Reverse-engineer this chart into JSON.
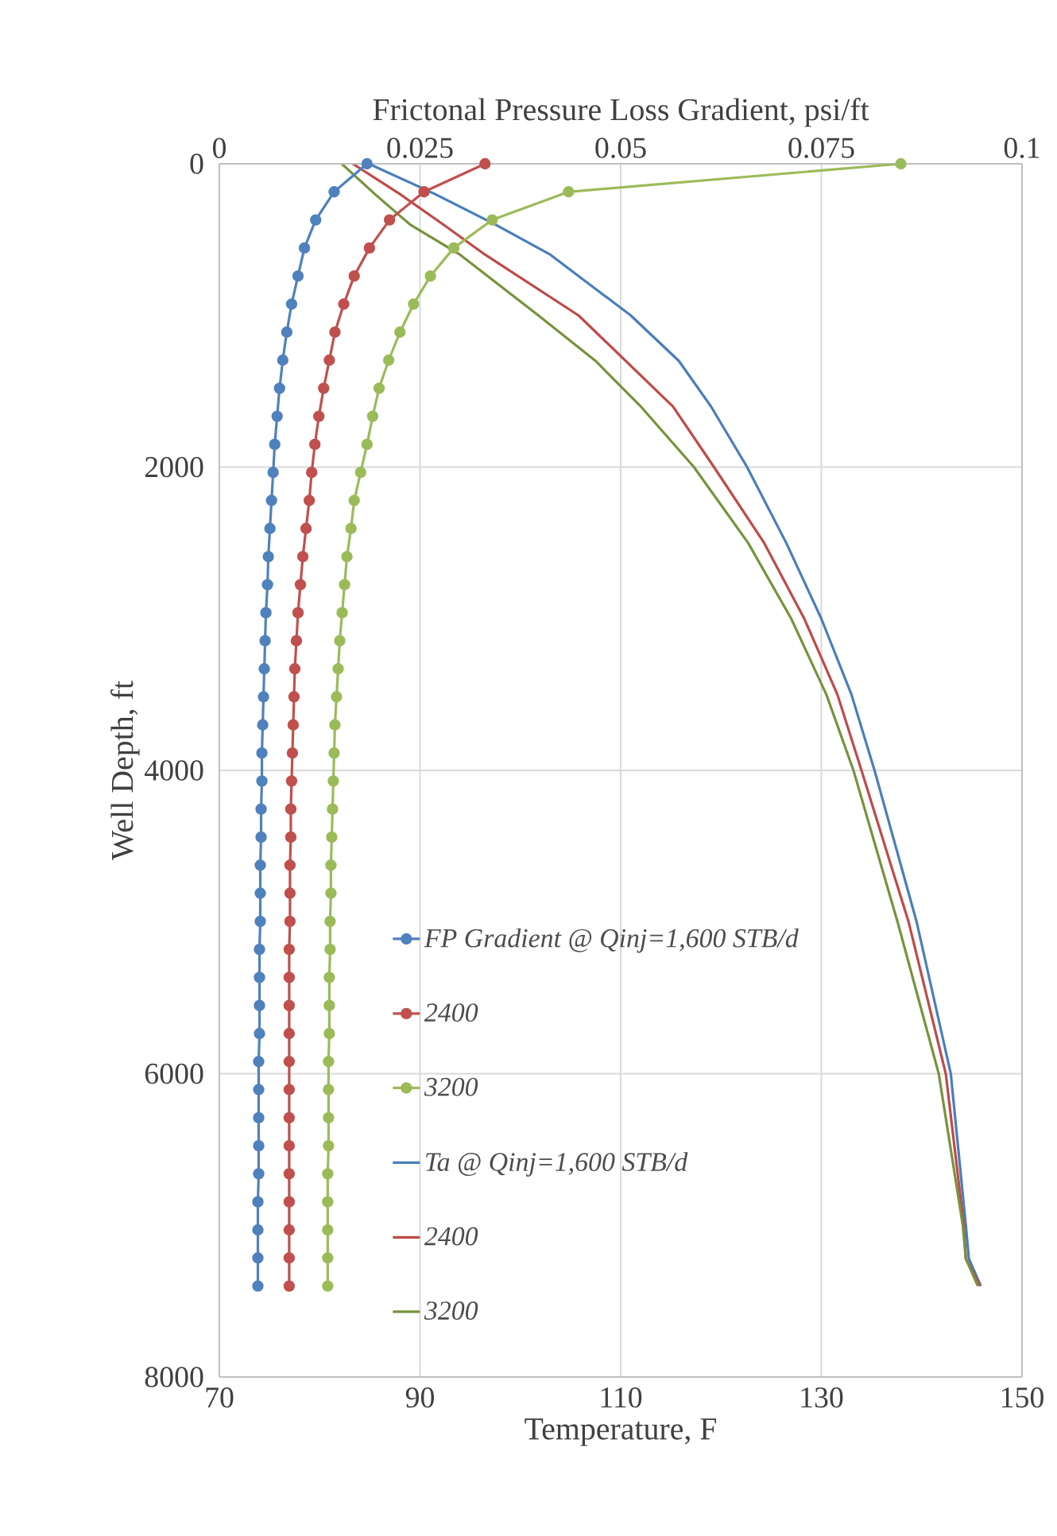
{
  "chart_data": {
    "type": "line",
    "xlabel": "Temperature, F",
    "ylabel": "Well Depth, ft",
    "x2label": "Frictonal Pressure Loss Gradient, psi/ft",
    "xlim": [
      70,
      150
    ],
    "xticks": [
      70,
      90,
      110,
      130,
      150
    ],
    "x2lim": [
      0,
      0.1
    ],
    "x2ticks": [
      0,
      0.025,
      0.05,
      0.075,
      0.1
    ],
    "ylim": [
      8000,
      0
    ],
    "yticks": [
      0,
      2000,
      4000,
      6000,
      8000
    ],
    "grid": true,
    "legend": "bottom",
    "series": [
      {
        "name": "FP Gradient @ Qinj=1,600 STB/d",
        "color": "#4f81bd",
        "axis": "x2",
        "marker": "circle",
        "x": [
          0.0184,
          0.0143,
          0.012,
          0.0106,
          0.0098,
          0.009,
          0.0084,
          0.0079,
          0.0075,
          0.0072,
          0.0069,
          0.0067,
          0.0065,
          0.0063,
          0.0061,
          0.006,
          0.0058,
          0.0057,
          0.0056,
          0.0055,
          0.0054,
          0.0053,
          0.0053,
          0.0052,
          0.0052,
          0.0051,
          0.0051,
          0.0051,
          0.005,
          0.005,
          0.005,
          0.005,
          0.0049,
          0.0049,
          0.0049,
          0.0049,
          0.0049,
          0.0048,
          0.0048,
          0.0048,
          0.0048
        ],
        "values": [
          0,
          185,
          370,
          555,
          740,
          925,
          1110,
          1295,
          1480,
          1665,
          1850,
          2035,
          2220,
          2405,
          2590,
          2775,
          2960,
          3145,
          3330,
          3515,
          3700,
          3885,
          4070,
          4255,
          4440,
          4625,
          4810,
          4995,
          5180,
          5365,
          5550,
          5735,
          5920,
          6105,
          6290,
          6475,
          6660,
          6845,
          7030,
          7215,
          7400
        ]
      },
      {
        "name": "2400",
        "color": "#c0504d",
        "axis": "x2",
        "marker": "circle",
        "x": [
          0.0331,
          0.0255,
          0.0212,
          0.0187,
          0.0168,
          0.0155,
          0.0144,
          0.0137,
          0.013,
          0.0124,
          0.0119,
          0.0115,
          0.0112,
          0.0108,
          0.0104,
          0.0101,
          0.0098,
          0.0096,
          0.0094,
          0.0093,
          0.0092,
          0.0091,
          0.009,
          0.0089,
          0.0089,
          0.0088,
          0.0088,
          0.0088,
          0.0087,
          0.0087,
          0.0087,
          0.0087,
          0.0087,
          0.0087,
          0.0087,
          0.0087,
          0.0087,
          0.0087,
          0.0087,
          0.0087,
          0.0087
        ],
        "values": [
          0,
          185,
          370,
          555,
          740,
          925,
          1110,
          1295,
          1480,
          1665,
          1850,
          2035,
          2220,
          2405,
          2590,
          2775,
          2960,
          3145,
          3330,
          3515,
          3700,
          3885,
          4070,
          4255,
          4440,
          4625,
          4810,
          4995,
          5180,
          5365,
          5550,
          5735,
          5920,
          6105,
          6290,
          6475,
          6660,
          6845,
          7030,
          7215,
          7400
        ]
      },
      {
        "name": "3200",
        "color": "#9bbb59",
        "axis": "x2",
        "marker": "circle",
        "x": [
          0.0849,
          0.0435,
          0.034,
          0.0292,
          0.0263,
          0.0242,
          0.0225,
          0.0211,
          0.0199,
          0.0191,
          0.0184,
          0.0176,
          0.0168,
          0.0164,
          0.0159,
          0.0156,
          0.0153,
          0.015,
          0.0148,
          0.0146,
          0.0144,
          0.0143,
          0.0142,
          0.0141,
          0.014,
          0.0139,
          0.0139,
          0.0138,
          0.0138,
          0.0137,
          0.0137,
          0.0137,
          0.0136,
          0.0136,
          0.0136,
          0.0136,
          0.0135,
          0.0135,
          0.0135,
          0.0135,
          0.0135
        ],
        "values": [
          0,
          185,
          370,
          555,
          740,
          925,
          1110,
          1295,
          1480,
          1665,
          1850,
          2035,
          2220,
          2405,
          2590,
          2775,
          2960,
          3145,
          3330,
          3515,
          3700,
          3885,
          4070,
          4255,
          4440,
          4625,
          4810,
          4995,
          5180,
          5365,
          5550,
          5735,
          5920,
          6105,
          6290,
          6475,
          6660,
          6845,
          7030,
          7215,
          7400
        ]
      },
      {
        "name": "Ta @ Qinj=1,600 STB/d",
        "color": "#4a7ebb",
        "marker": "none",
        "x": [
          84.9,
          91.5,
          97.5,
          103.0,
          111.0,
          115.8,
          119.0,
          122.6,
          126.5,
          130.0,
          133.0,
          135.3,
          139.5,
          142.9,
          144.4,
          144.7,
          145.9
        ],
        "values": [
          0,
          200,
          400,
          600,
          1000,
          1300,
          1600,
          2000,
          2500,
          3000,
          3500,
          4000,
          5000,
          6000,
          7000,
          7220,
          7400
        ]
      },
      {
        "name": "2400",
        "color": "#be4b48",
        "marker": "none",
        "x": [
          83.3,
          88.0,
          92.3,
          96.5,
          105.8,
          110.5,
          115.2,
          119.3,
          124.3,
          128.3,
          131.6,
          134.0,
          138.7,
          142.4,
          144.2,
          144.4,
          145.8
        ],
        "values": [
          0,
          200,
          400,
          600,
          1000,
          1300,
          1600,
          2000,
          2500,
          3000,
          3500,
          4000,
          5000,
          6000,
          7000,
          7220,
          7400
        ]
      },
      {
        "name": "3200",
        "color": "#77933c",
        "marker": "none",
        "x": [
          82.2,
          85.5,
          89.0,
          94.0,
          101.8,
          107.5,
          112.0,
          117.3,
          122.7,
          127.0,
          130.5,
          133.2,
          137.6,
          141.7,
          144.1,
          144.4,
          145.6
        ],
        "values": [
          0,
          200,
          400,
          600,
          1000,
          1300,
          1600,
          2000,
          2500,
          3000,
          3500,
          4000,
          5000,
          6000,
          7000,
          7220,
          7400
        ]
      }
    ]
  }
}
